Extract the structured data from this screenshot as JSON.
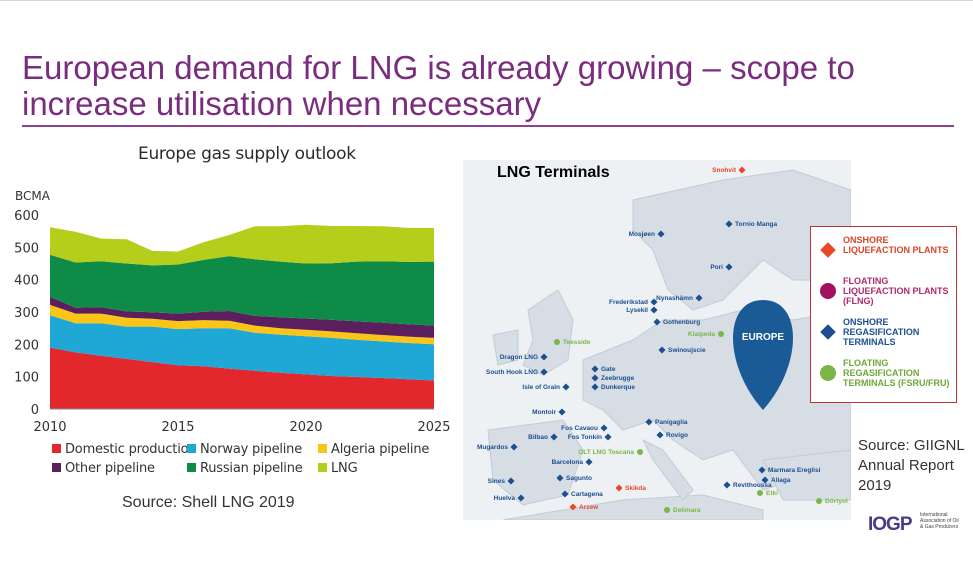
{
  "slide": {
    "title": "European demand for LNG is already growing – scope to increase utilisation when necessary"
  },
  "chart_data": {
    "type": "area",
    "stacked": true,
    "title": "Europe gas supply outlook",
    "ylabel": "BCMA",
    "xlabel": "",
    "x": [
      2010,
      2011,
      2012,
      2013,
      2014,
      2015,
      2016,
      2017,
      2018,
      2019,
      2020,
      2021,
      2022,
      2023,
      2024,
      2025
    ],
    "xticks": [
      2010,
      2015,
      2020,
      2025
    ],
    "yticks": [
      0,
      100,
      200,
      300,
      400,
      500,
      600
    ],
    "ylim": [
      0,
      600
    ],
    "xlim": [
      2010,
      2025
    ],
    "grid": false,
    "legend_position": "bottom",
    "series": [
      {
        "name": "Domestic production",
        "color": "#e2272d",
        "values": [
          190,
          175,
          165,
          155,
          145,
          135,
          132,
          125,
          118,
          112,
          107,
          102,
          99,
          96,
          92,
          88
        ]
      },
      {
        "name": "Norway pipeline",
        "color": "#1fa7d6",
        "values": [
          100,
          90,
          100,
          100,
          110,
          112,
          118,
          125,
          118,
          118,
          118,
          118,
          115,
          113,
          112,
          112
        ]
      },
      {
        "name": "Algeria pipeline",
        "color": "#fbc518",
        "values": [
          32,
          30,
          30,
          27,
          24,
          25,
          25,
          23,
          22,
          20,
          20,
          20,
          20,
          20,
          20,
          20
        ]
      },
      {
        "name": "Other pipeline",
        "color": "#5c1f5e",
        "values": [
          25,
          18,
          20,
          20,
          20,
          23,
          26,
          30,
          30,
          34,
          35,
          36,
          37,
          38,
          38,
          38
        ]
      },
      {
        "name": "Russian pipeline",
        "color": "#0e8c47",
        "values": [
          130,
          140,
          142,
          148,
          145,
          152,
          160,
          170,
          175,
          172,
          170,
          175,
          185,
          190,
          193,
          198
        ]
      },
      {
        "name": "LNG",
        "color": "#b5cd1b",
        "values": [
          85,
          95,
          70,
          75,
          45,
          40,
          55,
          65,
          102,
          109,
          120,
          115,
          110,
          108,
          105,
          104
        ]
      }
    ],
    "source": "Source: Shell LNG 2019"
  },
  "map": {
    "title": "LNG Terminals",
    "region_label": "EUROPE",
    "legend": [
      {
        "label": "ONSHORE LIQUEFACTION PLANTS",
        "color": "#e8472b",
        "shape": "diamond"
      },
      {
        "label": "FLOATING LIQUEFACTION PLANTS (FLNG)",
        "color": "#a3125e",
        "shape": "circle"
      },
      {
        "label": "ONSHORE REGASIFICATION TERMINALS",
        "color": "#1b4f8f",
        "shape": "diamond"
      },
      {
        "label": "FLOATING REGASIFICATION TERMINALS (FSRU/FRU)",
        "color": "#7ab648",
        "shape": "circle"
      }
    ],
    "terminals": [
      {
        "name": "Snohvit",
        "type": "onshore-liquefaction"
      },
      {
        "name": "Tornio Manga",
        "type": "onshore-regas"
      },
      {
        "name": "Mosjøen",
        "type": "onshore-regas"
      },
      {
        "name": "Pori",
        "type": "onshore-regas"
      },
      {
        "name": "Nynashämn",
        "type": "onshore-regas"
      },
      {
        "name": "Frederikstad",
        "type": "onshore-regas"
      },
      {
        "name": "Lysekil",
        "type": "onshore-regas"
      },
      {
        "name": "Gothenburg",
        "type": "onshore-regas"
      },
      {
        "name": "Teesside",
        "type": "floating-regas"
      },
      {
        "name": "Klaipeda",
        "type": "floating-regas"
      },
      {
        "name": "Swinoujscie",
        "type": "onshore-regas"
      },
      {
        "name": "Dragon LNG",
        "type": "onshore-regas"
      },
      {
        "name": "South Hook LNG",
        "type": "onshore-regas"
      },
      {
        "name": "Isle of Grain",
        "type": "onshore-regas"
      },
      {
        "name": "Gate",
        "type": "onshore-regas"
      },
      {
        "name": "Zeebrugge",
        "type": "onshore-regas"
      },
      {
        "name": "Dunkerque",
        "type": "onshore-regas"
      },
      {
        "name": "Montoir",
        "type": "onshore-regas"
      },
      {
        "name": "Fos Cavaou",
        "type": "onshore-regas"
      },
      {
        "name": "Fos Tonkin",
        "type": "onshore-regas"
      },
      {
        "name": "Panigaglia",
        "type": "onshore-regas"
      },
      {
        "name": "Rovigo",
        "type": "onshore-regas"
      },
      {
        "name": "Bilbao",
        "type": "onshore-regas"
      },
      {
        "name": "Mugardos",
        "type": "onshore-regas"
      },
      {
        "name": "OLT LNG Toscana",
        "type": "floating-regas"
      },
      {
        "name": "Barcelona",
        "type": "onshore-regas"
      },
      {
        "name": "Sagunto",
        "type": "onshore-regas"
      },
      {
        "name": "Sines",
        "type": "onshore-regas"
      },
      {
        "name": "Huelva",
        "type": "onshore-regas"
      },
      {
        "name": "Cartagena",
        "type": "onshore-regas"
      },
      {
        "name": "Skikda",
        "type": "onshore-liquefaction"
      },
      {
        "name": "Arzew",
        "type": "onshore-liquefaction"
      },
      {
        "name": "Delimara",
        "type": "floating-regas"
      },
      {
        "name": "Revithoussa",
        "type": "onshore-regas"
      },
      {
        "name": "Marmara Ereglisi",
        "type": "onshore-regas"
      },
      {
        "name": "Aliaga",
        "type": "onshore-regas"
      },
      {
        "name": "Etki",
        "type": "floating-regas"
      },
      {
        "name": "Dörtyol",
        "type": "floating-regas"
      }
    ],
    "source": "Source: GIIGNL Annual Report 2019"
  },
  "logo": {
    "mark": "IOGP",
    "text": "International Association of Oil & Gas Producers"
  }
}
